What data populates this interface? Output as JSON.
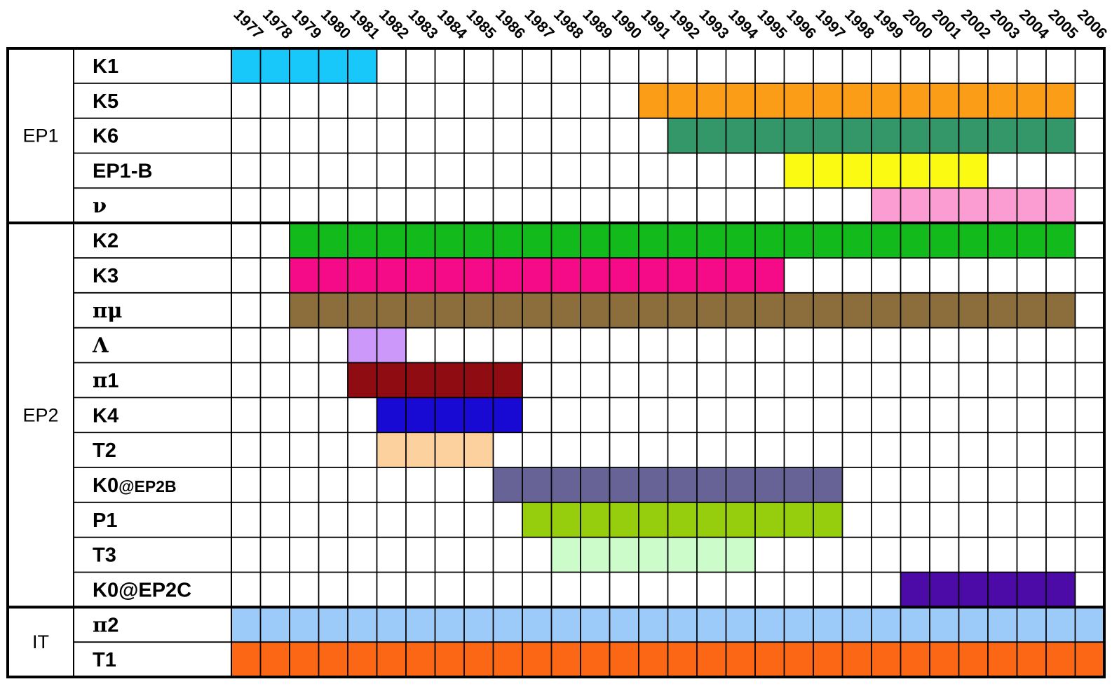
{
  "chart_data": {
    "type": "gantt",
    "title": "",
    "years": [
      "1977",
      "1978",
      "1979",
      "1980",
      "1981",
      "1982",
      "1983",
      "1984",
      "1985",
      "1986",
      "1987",
      "1988",
      "1989",
      "1990",
      "1991",
      "1992",
      "1993",
      "1994",
      "1995",
      "1996",
      "1997",
      "1998",
      "1999",
      "2000",
      "2001",
      "2002",
      "2003",
      "2004",
      "2005",
      "2006"
    ],
    "groups": [
      {
        "name": "EP1",
        "rows": [
          {
            "label": "K1",
            "start": 1977,
            "end": 1981,
            "color": "#19c8fb"
          },
          {
            "label": "K5",
            "start": 1991,
            "end": 2005,
            "color": "#fb9d17"
          },
          {
            "label": "K6",
            "start": 1992,
            "end": 2005,
            "color": "#33976a"
          },
          {
            "label": "EP1-B",
            "start": 1996,
            "end": 2002,
            "color": "#fafa12"
          },
          {
            "label": "ν",
            "start": 1999,
            "end": 2005,
            "color": "#fb9dd3"
          }
        ]
      },
      {
        "name": "EP2",
        "rows": [
          {
            "label": "K2",
            "start": 1979,
            "end": 2005,
            "color": "#13ba1b"
          },
          {
            "label": "K3",
            "start": 1979,
            "end": 1995,
            "color": "#f50a87"
          },
          {
            "label": "πμ",
            "start": 1979,
            "end": 2005,
            "color": "#8c6d3c"
          },
          {
            "label": "Λ",
            "start": 1981,
            "end": 1982,
            "color": "#cc99fa"
          },
          {
            "label": "π1",
            "start": 1981,
            "end": 1986,
            "color": "#8e0c12"
          },
          {
            "label": "K4",
            "start": 1982,
            "end": 1986,
            "color": "#190ad3"
          },
          {
            "label": "T2",
            "start": 1982,
            "end": 1985,
            "color": "#fdd19e"
          },
          {
            "label": "K0",
            "label_suffix": "@EP2B",
            "start": 1986,
            "end": 1997,
            "color": "#686397"
          },
          {
            "label": "P1",
            "start": 1987,
            "end": 1997,
            "color": "#96cd0c"
          },
          {
            "label": "T3",
            "start": 1988,
            "end": 1994,
            "color": "#ccfcca"
          },
          {
            "label": "K0@EP2C",
            "start": 2000,
            "end": 2005,
            "color": "#4c0ba7"
          }
        ]
      },
      {
        "name": "IT",
        "rows": [
          {
            "label": "π2",
            "start": 1977,
            "end": 2006,
            "color": "#9ccbfa"
          },
          {
            "label": "T1",
            "start": 1977,
            "end": 2006,
            "color": "#fb6714"
          }
        ]
      }
    ]
  }
}
